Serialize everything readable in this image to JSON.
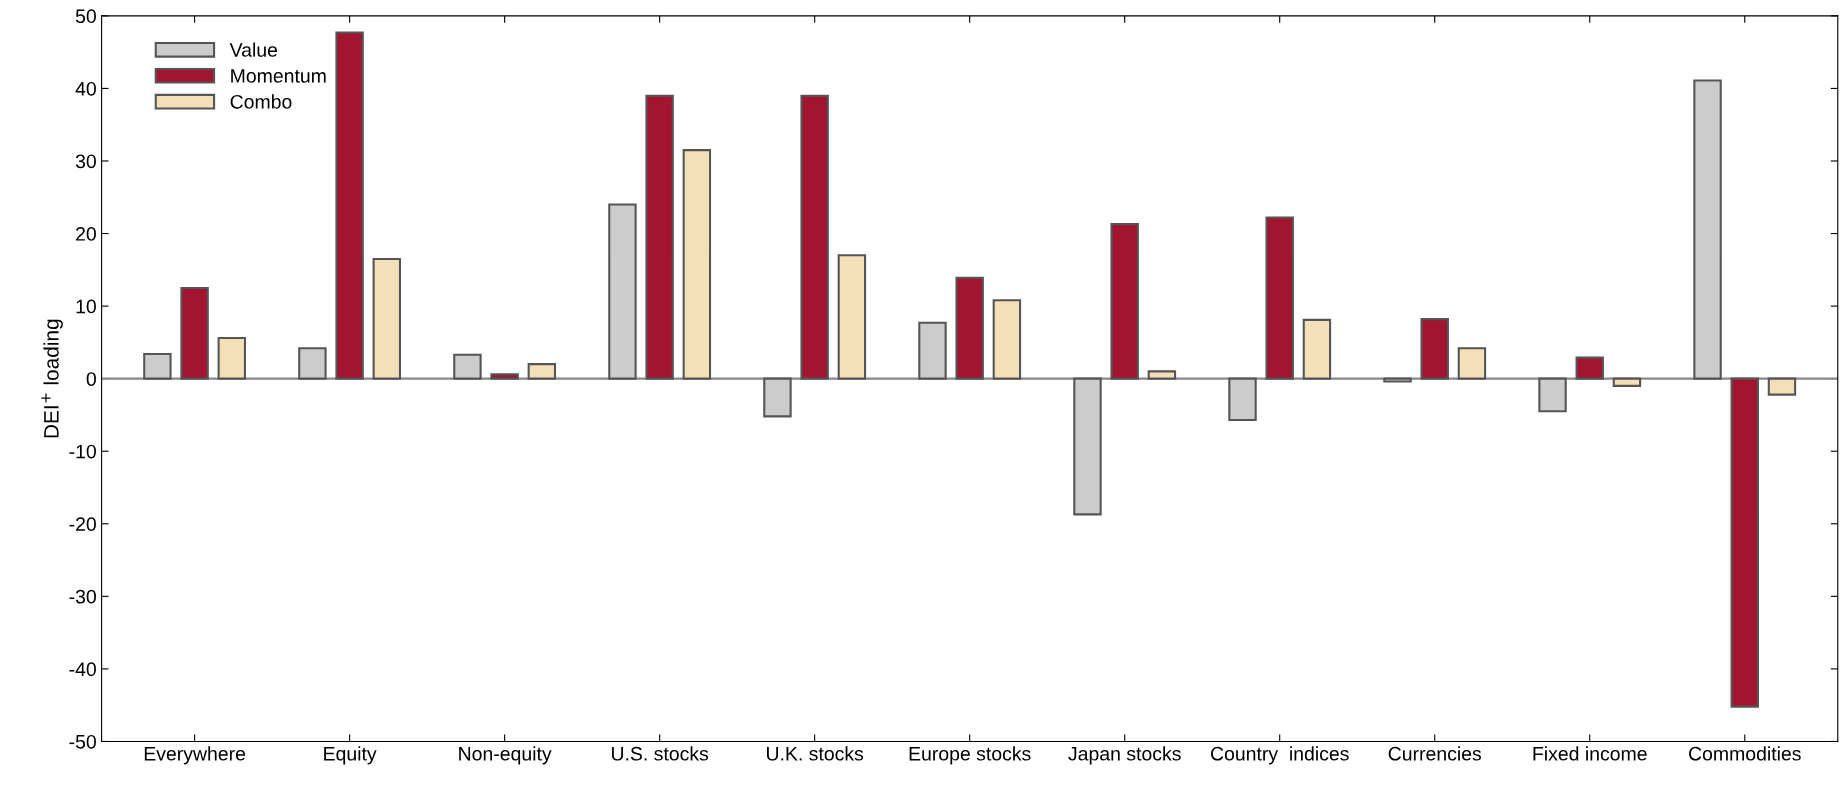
{
  "chart_data": {
    "type": "bar",
    "ylabel": "DEI$^{+}$ loading",
    "categories": [
      "Everywhere",
      "Equity",
      "Non-equity",
      "U.S. stocks",
      "U.K. stocks",
      "Europe stocks",
      "Japan stocks",
      "Country  indices",
      "Currencies",
      "Fixed income",
      "Commodities"
    ],
    "series": [
      {
        "name": "Value",
        "color": "#cccccc",
        "values": [
          3.4,
          4.2,
          3.3,
          24.0,
          -5.2,
          7.7,
          -18.7,
          -5.7,
          -0.4,
          -4.5,
          41.1
        ]
      },
      {
        "name": "Momentum",
        "color": "#a31431",
        "values": [
          12.5,
          47.7,
          0.6,
          39.0,
          39.0,
          13.9,
          21.3,
          22.2,
          8.2,
          2.9,
          -45.2
        ]
      },
      {
        "name": "Combo",
        "color": "#f3dfb8",
        "values": [
          5.6,
          16.5,
          2.0,
          31.5,
          17.0,
          10.8,
          1.0,
          8.1,
          4.2,
          -1.0,
          -2.2
        ]
      }
    ],
    "ylim": [
      -50,
      50
    ],
    "yticks": [
      -50,
      -40,
      -30,
      -20,
      -10,
      0,
      10,
      20,
      30,
      40,
      50
    ],
    "ref_lines": [
      {
        "axis": "y",
        "value": 0,
        "color": "#888888"
      }
    ],
    "grid": false,
    "legend": "top left"
  }
}
